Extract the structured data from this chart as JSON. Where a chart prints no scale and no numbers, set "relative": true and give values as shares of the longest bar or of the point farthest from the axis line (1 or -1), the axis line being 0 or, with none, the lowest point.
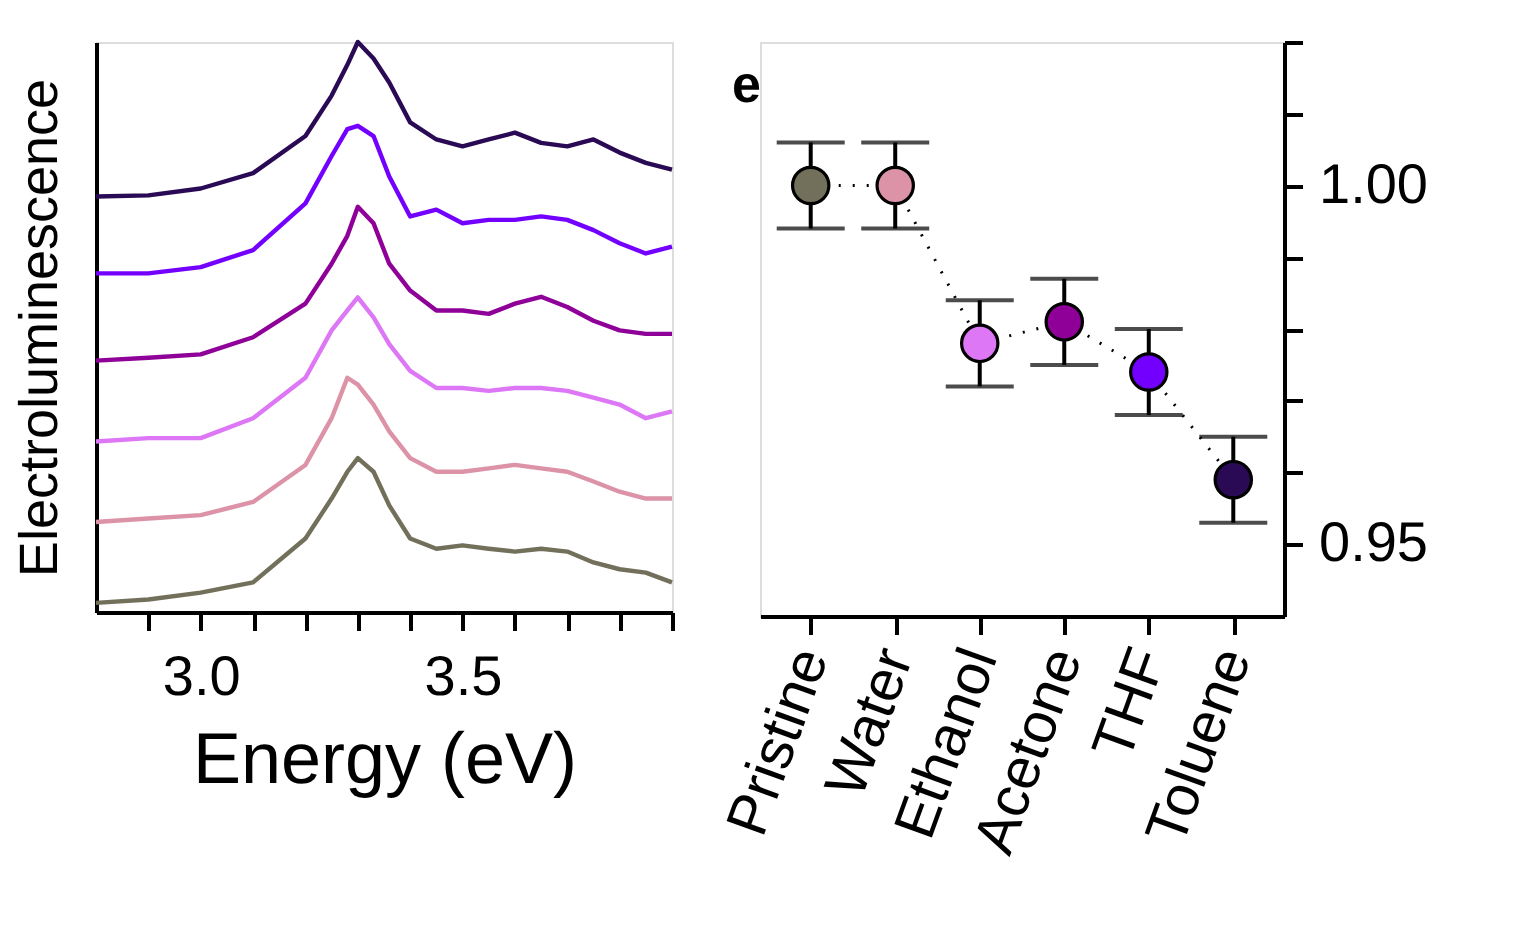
{
  "chart_data": [
    {
      "type": "line",
      "relative": true,
      "xlabel": "Energy (eV)",
      "ylabel": "Electroluminescence",
      "xlim": [
        2.8,
        3.9
      ],
      "xticks": [
        {
          "value": 2.9,
          "label": null
        },
        {
          "value": 3.0,
          "label": "3.0"
        },
        {
          "value": 3.1,
          "label": null
        },
        {
          "value": 3.2,
          "label": null
        },
        {
          "value": 3.3,
          "label": null
        },
        {
          "value": 3.4,
          "label": null
        },
        {
          "value": 3.5,
          "label": "3.5"
        },
        {
          "value": 3.6,
          "label": null
        },
        {
          "value": 3.7,
          "label": null
        },
        {
          "value": 3.8,
          "label": null
        },
        {
          "value": 3.9,
          "label": null
        }
      ],
      "grid": false,
      "legend": false,
      "line_style": "solid",
      "marker": "none",
      "x": [
        2.8,
        2.9,
        3.0,
        3.1,
        3.2,
        3.25,
        3.28,
        3.3,
        3.33,
        3.36,
        3.4,
        3.45,
        3.5,
        3.55,
        3.6,
        3.65,
        3.7,
        3.75,
        3.8,
        3.85,
        3.9
      ],
      "series": [
        {
          "color": "#72705a",
          "values": [
            0.016,
            0.022,
            0.034,
            0.052,
            0.129,
            0.199,
            0.246,
            0.27,
            0.246,
            0.187,
            0.129,
            0.111,
            0.117,
            0.111,
            0.106,
            0.111,
            0.106,
            0.087,
            0.075,
            0.069,
            0.052
          ]
        },
        {
          "color": "#dc93a8",
          "values": [
            0.158,
            0.164,
            0.17,
            0.193,
            0.258,
            0.34,
            0.411,
            0.399,
            0.364,
            0.317,
            0.27,
            0.246,
            0.246,
            0.252,
            0.258,
            0.252,
            0.246,
            0.229,
            0.211,
            0.199,
            0.199
          ]
        },
        {
          "color": "#dd77f5",
          "values": [
            0.299,
            0.305,
            0.305,
            0.34,
            0.411,
            0.494,
            0.529,
            0.552,
            0.517,
            0.47,
            0.423,
            0.393,
            0.393,
            0.388,
            0.393,
            0.393,
            0.388,
            0.376,
            0.364,
            0.34,
            0.352
          ]
        },
        {
          "color": "#8f0099",
          "values": [
            0.441,
            0.446,
            0.452,
            0.482,
            0.541,
            0.611,
            0.66,
            0.711,
            0.682,
            0.611,
            0.564,
            0.529,
            0.529,
            0.523,
            0.541,
            0.553,
            0.535,
            0.511,
            0.494,
            0.488,
            0.488
          ]
        },
        {
          "color": "#7300ff",
          "values": [
            0.594,
            0.594,
            0.605,
            0.635,
            0.717,
            0.8,
            0.847,
            0.853,
            0.835,
            0.764,
            0.694,
            0.706,
            0.682,
            0.688,
            0.688,
            0.694,
            0.688,
            0.67,
            0.647,
            0.629,
            0.641
          ]
        },
        {
          "color": "#2a0a55",
          "values": [
            0.729,
            0.731,
            0.743,
            0.77,
            0.835,
            0.906,
            0.96,
            1.0,
            0.971,
            0.929,
            0.859,
            0.829,
            0.817,
            0.829,
            0.841,
            0.823,
            0.817,
            0.829,
            0.806,
            0.788,
            0.776
          ]
        }
      ]
    },
    {
      "type": "line",
      "annotations": [
        "e"
      ],
      "categories": [
        "Pristine",
        "Water",
        "Ethanol",
        "Acetone",
        "THF",
        "Toluene"
      ],
      "ylim": [
        0.94,
        1.02
      ],
      "yticks": [
        {
          "value": 0.95,
          "label": "0.95"
        },
        {
          "value": 0.96,
          "label": null
        },
        {
          "value": 0.97,
          "label": null
        },
        {
          "value": 0.98,
          "label": null
        },
        {
          "value": 0.99,
          "label": null
        },
        {
          "value": 1.0,
          "label": "1.00"
        },
        {
          "value": 1.01,
          "label": null
        },
        {
          "value": 1.02,
          "label": null
        }
      ],
      "grid": false,
      "legend": false,
      "marker": "circle",
      "line_style": "dotted",
      "series": [
        {
          "color": "#000000",
          "colors": [
            "#72705a",
            "#dc93a8",
            "#dd77f5",
            "#8f0099",
            "#7300ff",
            "#2a0a55"
          ],
          "values": [
            1.0,
            1.0,
            0.978,
            0.981,
            0.974,
            0.959
          ],
          "errors": [
            0.006,
            0.006,
            0.006,
            0.006,
            0.006,
            0.006
          ]
        }
      ]
    }
  ]
}
